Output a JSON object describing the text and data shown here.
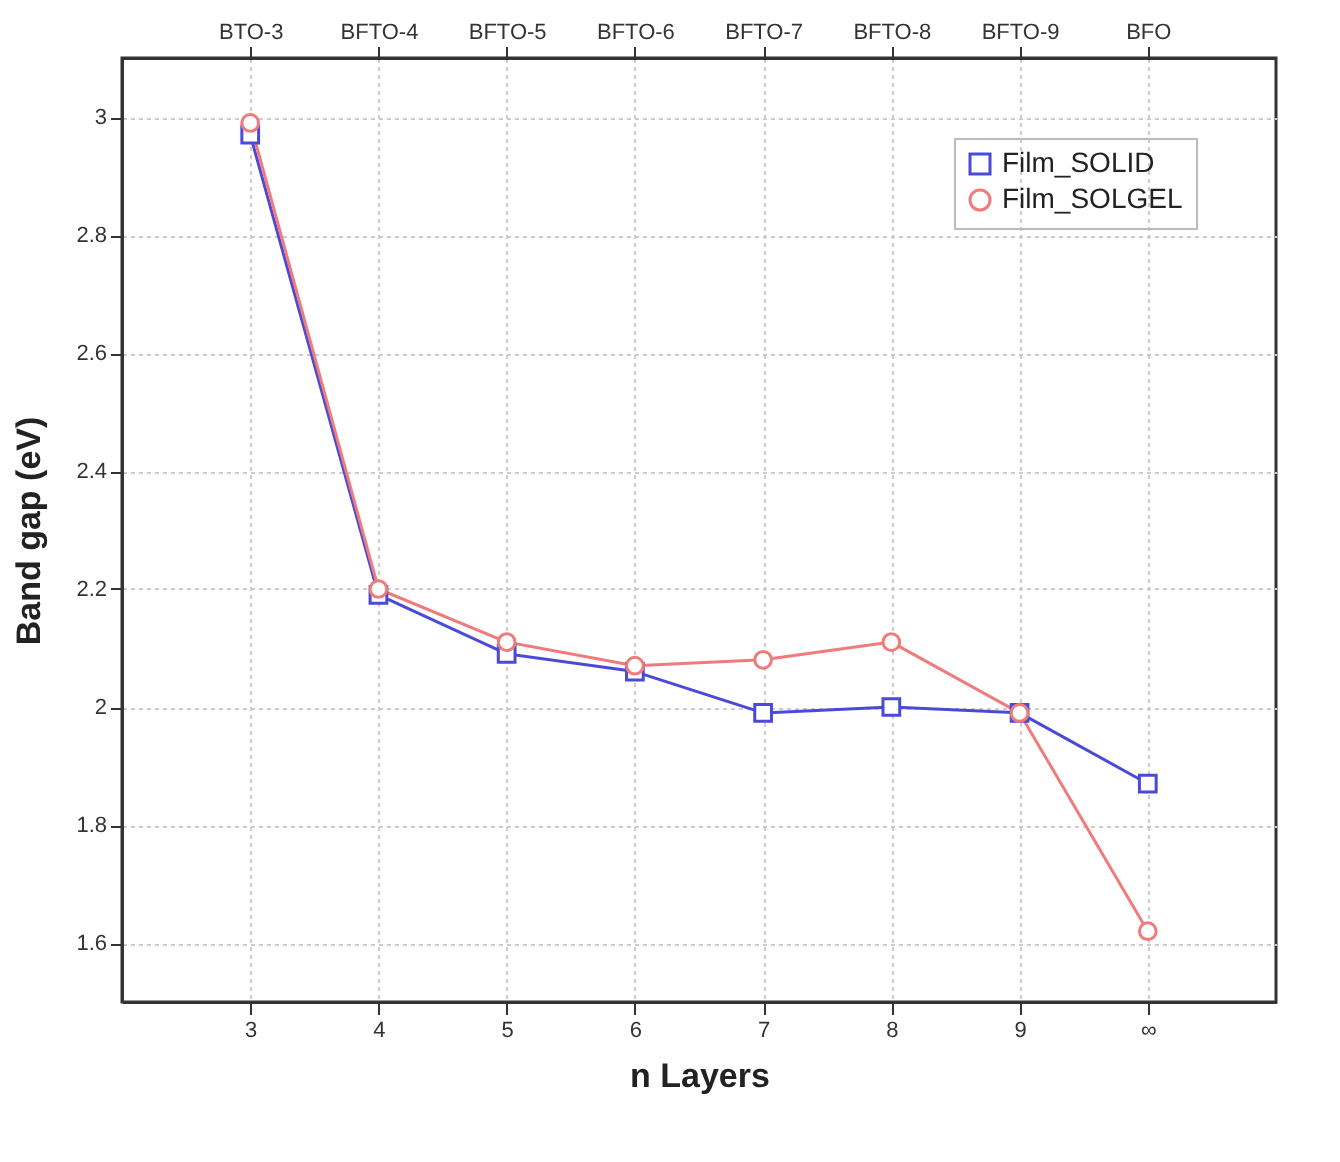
{
  "chart_data": {
    "type": "line",
    "xlabel": "n Layers",
    "ylabel": "Band gap (eV)",
    "x": [
      3,
      4,
      5,
      6,
      7,
      8,
      9,
      10
    ],
    "xlim": [
      2,
      11
    ],
    "xticks": [
      3,
      4,
      5,
      6,
      7,
      8,
      9,
      {
        "value": 10,
        "label": "∞"
      }
    ],
    "annotations": [
      "BTO-3",
      "BFTO-4",
      "BFTO-5",
      "BFTO-6",
      "BFTO-7",
      "BFTO-8",
      "BFTO-9",
      "BFO"
    ],
    "ylim": [
      1.5,
      3.1
    ],
    "yticks": [
      1.6,
      1.8,
      2.0,
      2.2,
      2.4,
      2.6,
      2.8,
      3.0
    ],
    "grid": true,
    "legend": "top right",
    "line_style": "solid",
    "series": [
      {
        "name": "Film_SOLID",
        "color": "#4a4ad6",
        "marker": "square",
        "values": [
          2.97,
          2.19,
          2.09,
          2.06,
          1.99,
          2.0,
          1.99,
          1.87
        ]
      },
      {
        "name": "Film_SOLGEL",
        "color": "#f07b7b",
        "marker": "circle",
        "values": [
          2.99,
          2.2,
          2.11,
          2.07,
          2.08,
          2.11,
          1.99,
          1.62
        ]
      }
    ]
  }
}
